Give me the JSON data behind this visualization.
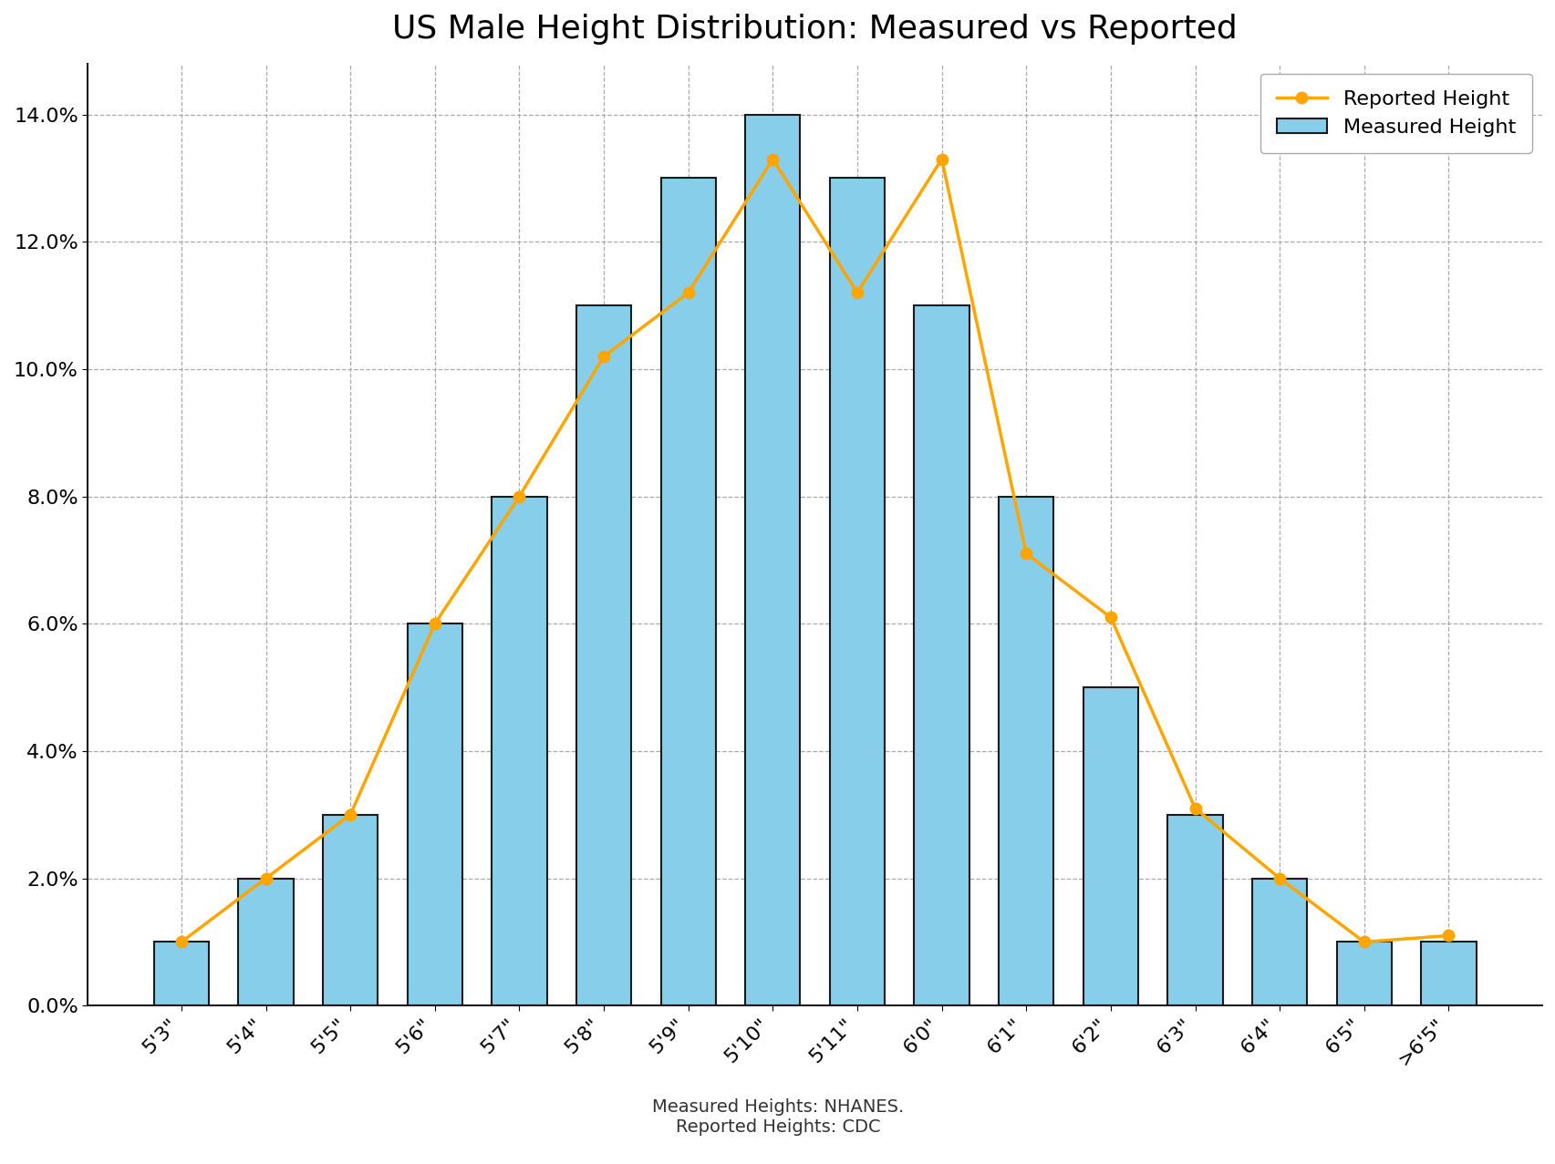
{
  "title": "US Male Height Distribution: Measured vs Reported",
  "categories": [
    "5'3\"",
    "5'4\"",
    "5'5\"",
    "5'6\"",
    "5'7\"",
    "5'8\"",
    "5'9\"",
    "5'10\"",
    "5'11\"",
    "6'0\"",
    "6'1\"",
    "6'2\"",
    "6'3\"",
    "6'4\"",
    "6'5\"",
    ">6'5\""
  ],
  "measured": [
    1.0,
    2.0,
    3.0,
    6.0,
    8.0,
    11.0,
    13.0,
    14.0,
    13.0,
    11.0,
    8.0,
    5.0,
    3.0,
    2.0,
    1.0,
    1.0
  ],
  "reported": [
    1.0,
    2.0,
    3.0,
    6.0,
    8.0,
    10.2,
    11.2,
    13.3,
    11.2,
    13.3,
    7.1,
    6.1,
    3.1,
    2.0,
    1.0,
    1.1
  ],
  "bar_color": "#87CEEB",
  "bar_edge_color": "#1a1a1a",
  "line_color": "#FFA500",
  "line_marker": "o",
  "ylim": [
    0,
    14.8
  ],
  "yticks": [
    0.0,
    2.0,
    4.0,
    6.0,
    8.0,
    10.0,
    12.0,
    14.0
  ],
  "grid_color": "#AAAAAA",
  "grid_style": "--",
  "background_color": "#FFFFFF",
  "title_fontsize": 26,
  "tick_fontsize": 16,
  "legend_fontsize": 16,
  "footnote": "Measured Heights: NHANES.\nReported Heights: CDC",
  "footnote_fontsize": 14
}
